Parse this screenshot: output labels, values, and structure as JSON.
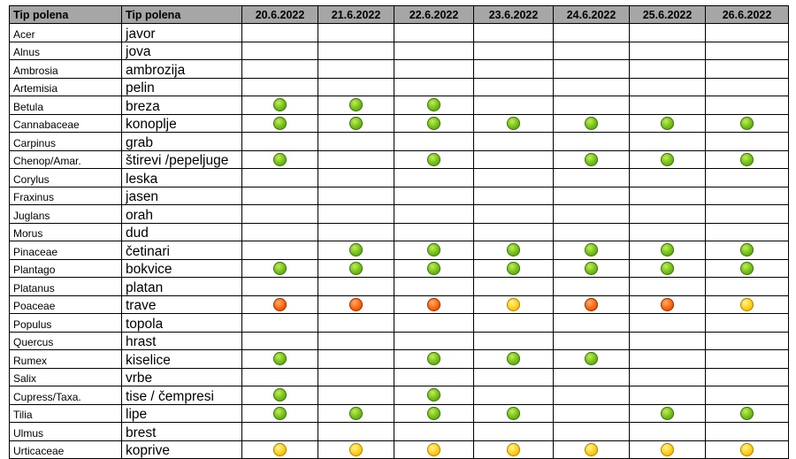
{
  "header": {
    "col1": "Tip polena",
    "col2": "Tip polena",
    "dates": [
      "20.6.2022",
      "21.6.2022",
      "22.6.2022",
      "23.6.2022",
      "24.6.2022",
      "25.6.2022",
      "26.6.2022"
    ]
  },
  "legend_colors": {
    "g": "#78c31a",
    "o": "#ff6a12",
    "y": "#ffd21a"
  },
  "rows": [
    {
      "latin": "Acer",
      "local": "javor",
      "levels": [
        "",
        "",
        "",
        "",
        "",
        "",
        ""
      ]
    },
    {
      "latin": "Alnus",
      "local": "jova",
      "levels": [
        "",
        "",
        "",
        "",
        "",
        "",
        ""
      ]
    },
    {
      "latin": "Ambrosia",
      "local": "ambrozija",
      "levels": [
        "",
        "",
        "",
        "",
        "",
        "",
        ""
      ]
    },
    {
      "latin": "Artemisia",
      "local": "pelin",
      "levels": [
        "",
        "",
        "",
        "",
        "",
        "",
        ""
      ]
    },
    {
      "latin": "Betula",
      "local": "breza",
      "levels": [
        "g",
        "g",
        "g",
        "",
        "",
        "",
        ""
      ]
    },
    {
      "latin": "Cannabaceae",
      "local": "konoplje",
      "levels": [
        "g",
        "g",
        "g",
        "g",
        "g",
        "g",
        "g"
      ]
    },
    {
      "latin": "Carpinus",
      "local": "grab",
      "levels": [
        "",
        "",
        "",
        "",
        "",
        "",
        ""
      ]
    },
    {
      "latin": "Chenop/Amar.",
      "local": "štirevi /pepeljuge",
      "levels": [
        "g",
        "",
        "g",
        "",
        "g",
        "g",
        "g"
      ]
    },
    {
      "latin": "Corylus",
      "local": "leska",
      "levels": [
        "",
        "",
        "",
        "",
        "",
        "",
        ""
      ]
    },
    {
      "latin": "Fraxinus",
      "local": "jasen",
      "levels": [
        "",
        "",
        "",
        "",
        "",
        "",
        ""
      ]
    },
    {
      "latin": "Juglans",
      "local": "orah",
      "levels": [
        "",
        "",
        "",
        "",
        "",
        "",
        ""
      ]
    },
    {
      "latin": "Morus",
      "local": "dud",
      "levels": [
        "",
        "",
        "",
        "",
        "",
        "",
        ""
      ]
    },
    {
      "latin": "Pinaceae",
      "local": "četinari",
      "levels": [
        "",
        "g",
        "g",
        "g",
        "g",
        "g",
        "g"
      ]
    },
    {
      "latin": "Plantago",
      "local": "bokvice",
      "levels": [
        "g",
        "g",
        "g",
        "g",
        "g",
        "g",
        "g"
      ]
    },
    {
      "latin": "Platanus",
      "local": "platan",
      "levels": [
        "",
        "",
        "",
        "",
        "",
        "",
        ""
      ]
    },
    {
      "latin": "Poaceae",
      "local": "trave",
      "levels": [
        "o",
        "o",
        "o",
        "y",
        "o",
        "o",
        "y"
      ]
    },
    {
      "latin": "Populus",
      "local": "topola",
      "levels": [
        "",
        "",
        "",
        "",
        "",
        "",
        ""
      ]
    },
    {
      "latin": "Quercus",
      "local": "hrast",
      "levels": [
        "",
        "",
        "",
        "",
        "",
        "",
        ""
      ]
    },
    {
      "latin": "Rumex",
      "local": "kiselice",
      "levels": [
        "g",
        "",
        "g",
        "g",
        "g",
        "",
        ""
      ]
    },
    {
      "latin": "Salix",
      "local": "vrbe",
      "levels": [
        "",
        "",
        "",
        "",
        "",
        "",
        ""
      ]
    },
    {
      "latin": "Cupress/Taxa.",
      "local": "tise / čempresi",
      "levels": [
        "g",
        "",
        "g",
        "",
        "",
        "",
        ""
      ]
    },
    {
      "latin": "Tilia",
      "local": "lipe",
      "levels": [
        "g",
        "g",
        "g",
        "g",
        "",
        "g",
        "g"
      ]
    },
    {
      "latin": "Ulmus",
      "local": "brest",
      "levels": [
        "",
        "",
        "",
        "",
        "",
        "",
        ""
      ]
    },
    {
      "latin": "Urticaceae",
      "local": "koprive",
      "levels": [
        "y",
        "y",
        "y",
        "y",
        "y",
        "y",
        "y"
      ]
    }
  ]
}
